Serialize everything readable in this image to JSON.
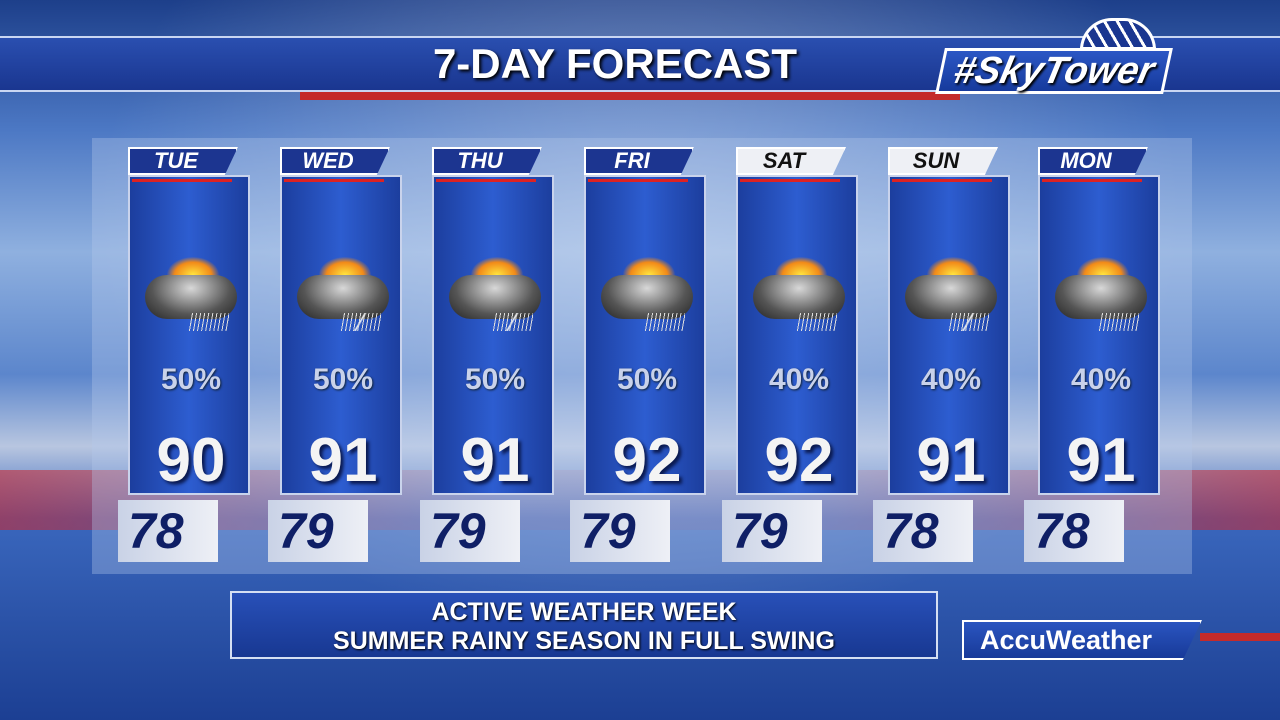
{
  "header": {
    "title": "7-DAY FORECAST",
    "logo_text": "#SkyTower"
  },
  "days": [
    {
      "day": "TUE",
      "icon": "sun-cloud-rain-icon",
      "precip": "50%",
      "high": "90",
      "low": "78",
      "light": false
    },
    {
      "day": "WED",
      "icon": "sun-cloud-thunderstorm-icon",
      "precip": "50%",
      "high": "91",
      "low": "79",
      "light": false
    },
    {
      "day": "THU",
      "icon": "sun-cloud-thunderstorm-icon",
      "precip": "50%",
      "high": "91",
      "low": "79",
      "light": false
    },
    {
      "day": "FRI",
      "icon": "sun-cloud-rain-icon",
      "precip": "50%",
      "high": "92",
      "low": "79",
      "light": false
    },
    {
      "day": "SAT",
      "icon": "sun-cloud-rain-icon",
      "precip": "40%",
      "high": "92",
      "low": "79",
      "light": true
    },
    {
      "day": "SUN",
      "icon": "sun-cloud-thunderstorm-icon",
      "precip": "40%",
      "high": "91",
      "low": "78",
      "light": true
    },
    {
      "day": "MON",
      "icon": "sun-cloud-rain-icon",
      "precip": "40%",
      "high": "91",
      "low": "78",
      "light": false
    }
  ],
  "banner": {
    "line1": "ACTIVE WEATHER WEEK",
    "line2": "SUMMER RAINY SEASON IN FULL SWING"
  },
  "sponsor": "AccuWeather"
}
